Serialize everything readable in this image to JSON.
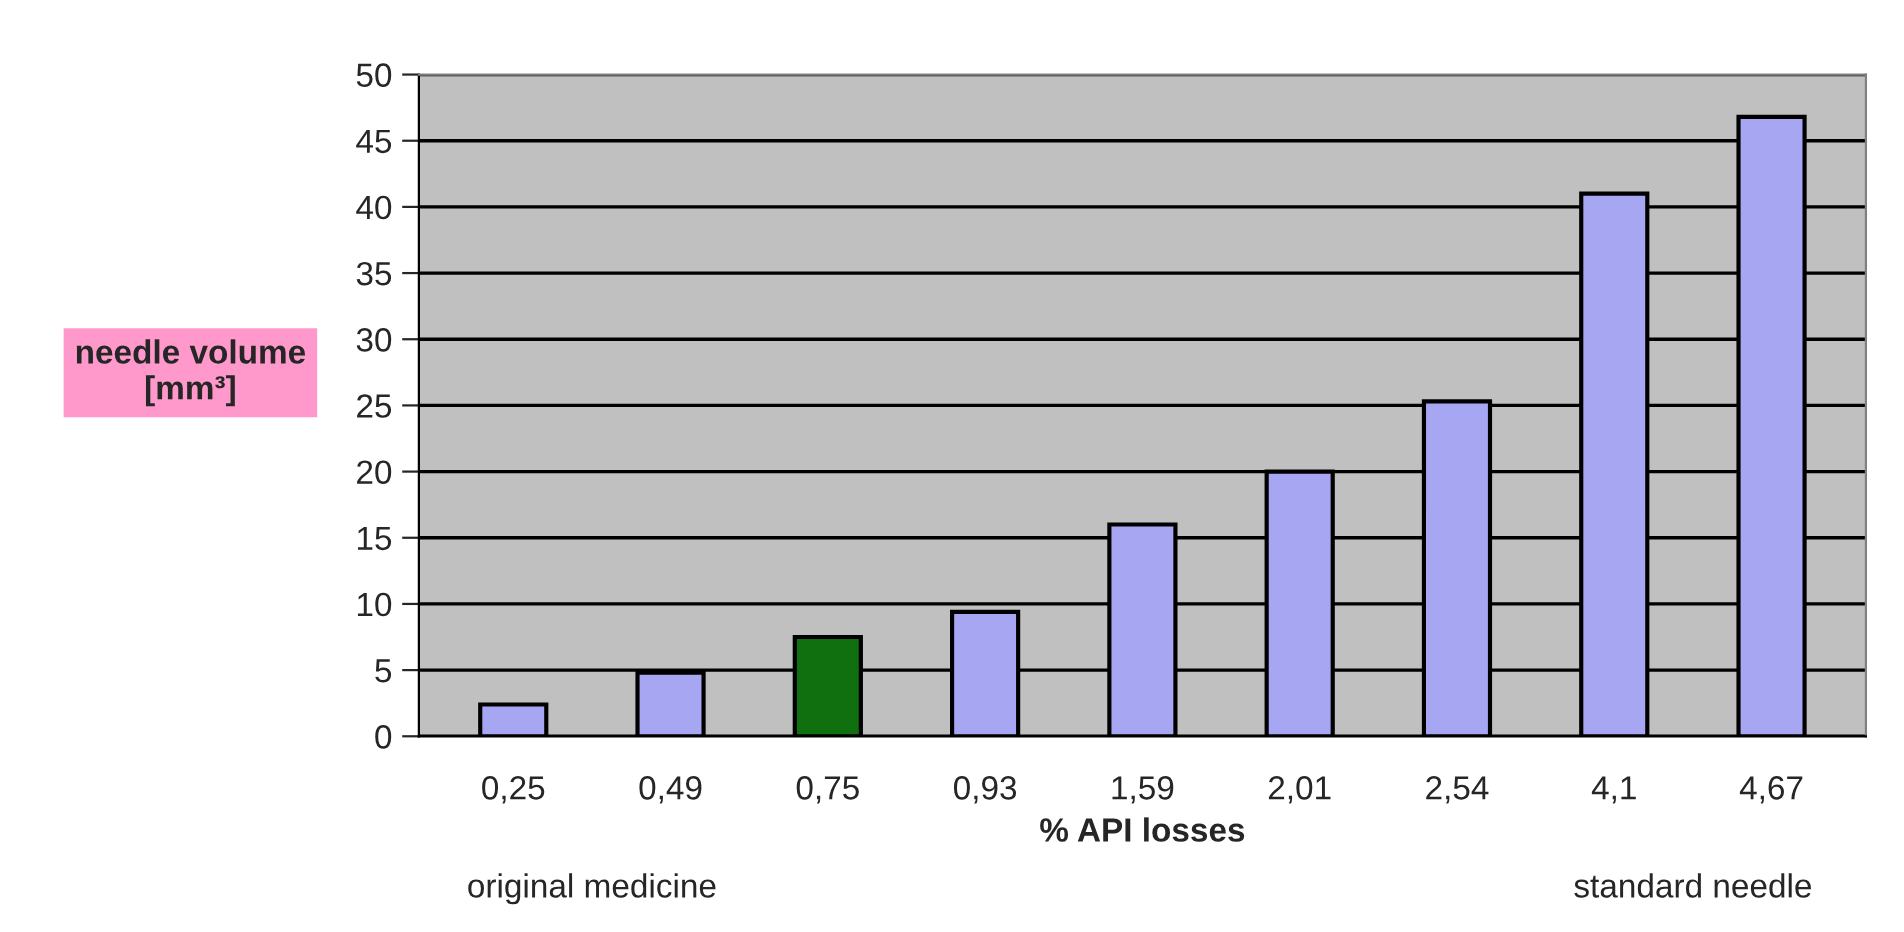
{
  "chart_data": {
    "type": "bar",
    "xlabel": "% API losses",
    "ylabel": "needle volume\n[mm³]",
    "categories": [
      "0,25",
      "0,49",
      "0,75",
      "0,93",
      "1,59",
      "2,01",
      "2,54",
      "4,1",
      "4,67"
    ],
    "values": [
      2.4,
      4.8,
      7.5,
      9.4,
      16,
      20,
      25.3,
      41,
      46.8
    ],
    "colors": [
      "#9999ff",
      "#9999ff",
      "#008000",
      "#9999ff",
      "#9999ff",
      "#9999ff",
      "#9999ff",
      "#9999ff",
      "#9999ff"
    ],
    "ylim": [
      0,
      50
    ],
    "yticks": [
      0,
      5,
      10,
      15,
      20,
      25,
      30,
      35,
      40,
      45,
      50
    ],
    "grid": "y",
    "annotations": [
      "original medicine",
      "standard needle"
    ]
  }
}
